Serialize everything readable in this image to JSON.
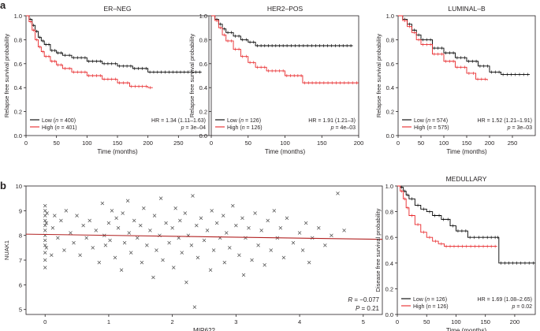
{
  "figure": {
    "panel_labels": [
      "a",
      "b"
    ]
  },
  "chart_data": [
    {
      "type": "line",
      "subtype": "kaplan-meier",
      "title": "ER–NEG",
      "xlabel": "Time (months)",
      "ylabel": "Relapse free survival probability",
      "xlim": [
        0,
        300
      ],
      "ylim": [
        0,
        1
      ],
      "xticks": [
        0,
        50,
        100,
        150,
        200,
        250
      ],
      "yticks": [
        0.0,
        0.2,
        0.4,
        0.6,
        0.8,
        1.0
      ],
      "ytick_labels": [
        "0.0",
        "0.2",
        "0.4",
        "0.6",
        "0.8",
        "1.0"
      ],
      "legend_position": "bottom",
      "hr_text": "HR = 1.34 (1.11–1.63)",
      "p_text": "p = 3e–04",
      "series": [
        {
          "name": "Low",
          "label": "Low (n = 400)",
          "color": "#000000",
          "x": [
            0,
            5,
            10,
            15,
            20,
            25,
            30,
            40,
            50,
            60,
            75,
            100,
            125,
            150,
            175,
            200,
            288
          ],
          "y": [
            1.0,
            0.97,
            0.92,
            0.87,
            0.82,
            0.79,
            0.76,
            0.71,
            0.69,
            0.67,
            0.65,
            0.62,
            0.6,
            0.58,
            0.56,
            0.53,
            0.53
          ]
        },
        {
          "name": "High",
          "label": "High (n = 401)",
          "color": "#e8282b",
          "x": [
            0,
            5,
            10,
            15,
            20,
            25,
            30,
            40,
            50,
            60,
            75,
            100,
            125,
            150,
            170,
            200,
            208
          ],
          "y": [
            1.0,
            0.95,
            0.88,
            0.8,
            0.74,
            0.7,
            0.66,
            0.62,
            0.59,
            0.56,
            0.53,
            0.5,
            0.47,
            0.44,
            0.41,
            0.4,
            0.4
          ]
        }
      ]
    },
    {
      "type": "line",
      "subtype": "kaplan-meier",
      "title": "HER2–POS",
      "xlabel": "Time (months)",
      "ylabel": "Relapse free survival probability",
      "xlim": [
        0,
        200
      ],
      "ylim": [
        0,
        1
      ],
      "xticks": [
        0,
        50,
        100,
        150,
        200
      ],
      "yticks": [
        0.0,
        0.2,
        0.4,
        0.6,
        0.8,
        1.0
      ],
      "ytick_labels": [
        "0.0",
        "0.2",
        "0.4",
        "0.6",
        "0.8",
        "1.0"
      ],
      "legend_position": "bottom",
      "hr_text": "HR = 1.91 (1.21–3)",
      "p_text": "p = 4e–03",
      "series": [
        {
          "name": "Low",
          "label": "Low (n = 126)",
          "color": "#000000",
          "x": [
            0,
            5,
            10,
            15,
            20,
            30,
            40,
            50,
            60,
            70,
            100,
            150,
            192
          ],
          "y": [
            1.0,
            0.97,
            0.93,
            0.89,
            0.86,
            0.83,
            0.8,
            0.78,
            0.75,
            0.75,
            0.75,
            0.75,
            0.75
          ]
        },
        {
          "name": "High",
          "label": "High (n = 126)",
          "color": "#e8282b",
          "x": [
            0,
            5,
            10,
            15,
            20,
            30,
            40,
            50,
            60,
            75,
            100,
            120,
            124,
            150,
            200
          ],
          "y": [
            1.0,
            0.96,
            0.9,
            0.84,
            0.79,
            0.72,
            0.66,
            0.61,
            0.57,
            0.54,
            0.5,
            0.5,
            0.44,
            0.44,
            0.44
          ]
        }
      ]
    },
    {
      "type": "line",
      "subtype": "kaplan-meier",
      "title": "LUMINAL–B",
      "xlabel": "Time (months)",
      "ylabel": "Relapse free survival probability",
      "xlim": [
        0,
        300
      ],
      "ylim": [
        0,
        1
      ],
      "xticks": [
        0,
        50,
        100,
        150,
        200,
        250
      ],
      "yticks": [
        0.0,
        0.2,
        0.4,
        0.6,
        0.8,
        1.0
      ],
      "ytick_labels": [
        "0.0",
        "0.2",
        "0.4",
        "0.6",
        "0.8",
        "1.0"
      ],
      "legend_position": "bottom",
      "hr_text": "HR = 1.52 (1.21–1.91)",
      "p_text": "p = 3e–03",
      "series": [
        {
          "name": "Low",
          "label": "Low (n = 574)",
          "color": "#000000",
          "x": [
            0,
            10,
            20,
            30,
            40,
            50,
            75,
            100,
            125,
            150,
            175,
            200,
            225,
            288
          ],
          "y": [
            1.0,
            0.97,
            0.93,
            0.88,
            0.84,
            0.8,
            0.73,
            0.69,
            0.65,
            0.62,
            0.58,
            0.53,
            0.51,
            0.51
          ]
        },
        {
          "name": "High",
          "label": "High (n = 575)",
          "color": "#e8282b",
          "x": [
            0,
            10,
            20,
            30,
            40,
            50,
            75,
            100,
            125,
            150,
            170,
            195
          ],
          "y": [
            1.0,
            0.96,
            0.91,
            0.86,
            0.8,
            0.76,
            0.68,
            0.62,
            0.57,
            0.52,
            0.47,
            0.46
          ]
        }
      ]
    },
    {
      "type": "scatter",
      "title": "",
      "xlabel": "MIR622",
      "ylabel": "NUAK1",
      "xlim": [
        -0.3,
        5.3
      ],
      "ylim": [
        4.8,
        10.0
      ],
      "xticks": [
        0,
        1,
        2,
        3,
        4,
        5
      ],
      "yticks": [
        5,
        6,
        7,
        8,
        9,
        10
      ],
      "ytick_labels": [
        "5",
        "6",
        "7",
        "8",
        "9",
        "10"
      ],
      "marker": "x",
      "regression_line": {
        "x": [
          -0.3,
          5.3
        ],
        "y": [
          8.05,
          7.84
        ],
        "color": "#b22222"
      },
      "r_text": "R = −0.077",
      "p_text": "P = 0.21",
      "points": [
        [
          0.0,
          6.7
        ],
        [
          0.0,
          7.0
        ],
        [
          0.0,
          7.3
        ],
        [
          0.0,
          7.6
        ],
        [
          0.0,
          7.8
        ],
        [
          0.0,
          8.0
        ],
        [
          0.0,
          8.2
        ],
        [
          0.0,
          8.4
        ],
        [
          0.0,
          8.6
        ],
        [
          0.0,
          8.8
        ],
        [
          0.0,
          9.0
        ],
        [
          0.0,
          9.2
        ],
        [
          0.02,
          7.5
        ],
        [
          0.02,
          8.5
        ],
        [
          0.03,
          8.9
        ],
        [
          0.1,
          7.2
        ],
        [
          0.12,
          8.3
        ],
        [
          0.15,
          8.8
        ],
        [
          0.2,
          7.9
        ],
        [
          0.25,
          8.6
        ],
        [
          0.3,
          7.4
        ],
        [
          0.33,
          9.0
        ],
        [
          0.4,
          8.1
        ],
        [
          0.45,
          7.7
        ],
        [
          0.5,
          8.8
        ],
        [
          0.55,
          7.2
        ],
        [
          0.6,
          8.4
        ],
        [
          0.65,
          7.9
        ],
        [
          0.7,
          8.6
        ],
        [
          0.75,
          7.5
        ],
        [
          0.8,
          8.2
        ],
        [
          0.85,
          6.9
        ],
        [
          0.9,
          9.3
        ],
        [
          0.93,
          8.0
        ],
        [
          0.95,
          7.6
        ],
        [
          1.0,
          8.5
        ],
        [
          1.02,
          7.8
        ],
        [
          1.05,
          9.0
        ],
        [
          1.1,
          7.1
        ],
        [
          1.12,
          8.7
        ],
        [
          1.15,
          8.3
        ],
        [
          1.2,
          6.6
        ],
        [
          1.22,
          8.9
        ],
        [
          1.25,
          7.7
        ],
        [
          1.3,
          9.4
        ],
        [
          1.32,
          8.1
        ],
        [
          1.35,
          7.3
        ],
        [
          1.4,
          8.6
        ],
        [
          1.45,
          7.9
        ],
        [
          1.5,
          8.4
        ],
        [
          1.52,
          6.9
        ],
        [
          1.55,
          9.1
        ],
        [
          1.6,
          7.6
        ],
        [
          1.65,
          8.2
        ],
        [
          1.7,
          6.3
        ],
        [
          1.72,
          8.8
        ],
        [
          1.75,
          7.4
        ],
        [
          1.8,
          8.0
        ],
        [
          1.82,
          9.5
        ],
        [
          1.85,
          7.0
        ],
        [
          1.9,
          8.5
        ],
        [
          1.95,
          7.7
        ],
        [
          2.0,
          8.3
        ],
        [
          2.02,
          6.7
        ],
        [
          2.05,
          9.1
        ],
        [
          2.1,
          7.9
        ],
        [
          2.12,
          8.6
        ],
        [
          2.15,
          7.3
        ],
        [
          2.2,
          8.9
        ],
        [
          2.22,
          6.1
        ],
        [
          2.25,
          8.0
        ],
        [
          2.3,
          7.6
        ],
        [
          2.32,
          9.6
        ],
        [
          2.35,
          5.1
        ],
        [
          2.38,
          8.4
        ],
        [
          2.4,
          7.1
        ],
        [
          2.45,
          8.7
        ],
        [
          2.5,
          7.8
        ],
        [
          2.55,
          8.2
        ],
        [
          2.6,
          6.6
        ],
        [
          2.62,
          9.0
        ],
        [
          2.65,
          7.4
        ],
        [
          2.7,
          8.5
        ],
        [
          2.75,
          7.9
        ],
        [
          2.8,
          8.8
        ],
        [
          2.82,
          6.9
        ],
        [
          2.85,
          8.1
        ],
        [
          2.9,
          7.5
        ],
        [
          2.95,
          9.2
        ],
        [
          3.0,
          8.4
        ],
        [
          3.05,
          7.2
        ],
        [
          3.1,
          8.7
        ],
        [
          3.12,
          6.4
        ],
        [
          3.15,
          7.9
        ],
        [
          3.2,
          8.3
        ],
        [
          3.25,
          7.0
        ],
        [
          3.3,
          8.9
        ],
        [
          3.35,
          7.6
        ],
        [
          3.4,
          8.2
        ],
        [
          3.45,
          6.8
        ],
        [
          3.5,
          8.6
        ],
        [
          3.55,
          7.4
        ],
        [
          3.6,
          9.0
        ],
        [
          3.65,
          7.9
        ],
        [
          3.7,
          8.3
        ],
        [
          3.75,
          7.1
        ],
        [
          3.8,
          8.7
        ],
        [
          3.9,
          7.7
        ],
        [
          4.0,
          8.1
        ],
        [
          4.05,
          7.4
        ],
        [
          4.1,
          8.5
        ],
        [
          4.15,
          6.9
        ],
        [
          4.2,
          7.9
        ],
        [
          4.3,
          8.3
        ],
        [
          4.4,
          7.6
        ],
        [
          4.5,
          8.0
        ],
        [
          4.6,
          9.7
        ],
        [
          4.7,
          8.2
        ]
      ]
    },
    {
      "type": "line",
      "subtype": "kaplan-meier",
      "title": "MEDULLARY",
      "xlabel": "Time (months)",
      "ylabel": "Disease free survival probability",
      "xlim": [
        0,
        235
      ],
      "ylim": [
        0,
        1
      ],
      "xticks": [
        0,
        50,
        100,
        150,
        200
      ],
      "yticks": [
        0.0,
        0.2,
        0.4,
        0.6,
        0.8,
        1.0
      ],
      "ytick_labels": [
        "0.0",
        "0.2",
        "0.4",
        "0.6",
        "0.8",
        "1.0"
      ],
      "legend_position": "bottom",
      "hr_text": "HR = 1.69 (1.08–2.65)",
      "p_text": "p = 0.02",
      "series": [
        {
          "name": "Low",
          "label": "Low (n = 126)",
          "color": "#000000",
          "x": [
            0,
            5,
            10,
            15,
            20,
            30,
            40,
            50,
            60,
            75,
            90,
            100,
            120,
            150,
            170,
            173,
            200,
            235
          ],
          "y": [
            1.0,
            0.99,
            0.96,
            0.93,
            0.9,
            0.85,
            0.82,
            0.8,
            0.77,
            0.74,
            0.69,
            0.65,
            0.6,
            0.6,
            0.6,
            0.4,
            0.4,
            0.4
          ]
        },
        {
          "name": "High",
          "label": "High (n = 126)",
          "color": "#e8282b",
          "x": [
            0,
            5,
            10,
            15,
            20,
            30,
            40,
            50,
            60,
            70,
            80,
            100,
            150,
            170
          ],
          "y": [
            1.0,
            0.96,
            0.9,
            0.83,
            0.77,
            0.7,
            0.64,
            0.6,
            0.57,
            0.55,
            0.53,
            0.53,
            0.53,
            0.53
          ]
        }
      ]
    }
  ]
}
